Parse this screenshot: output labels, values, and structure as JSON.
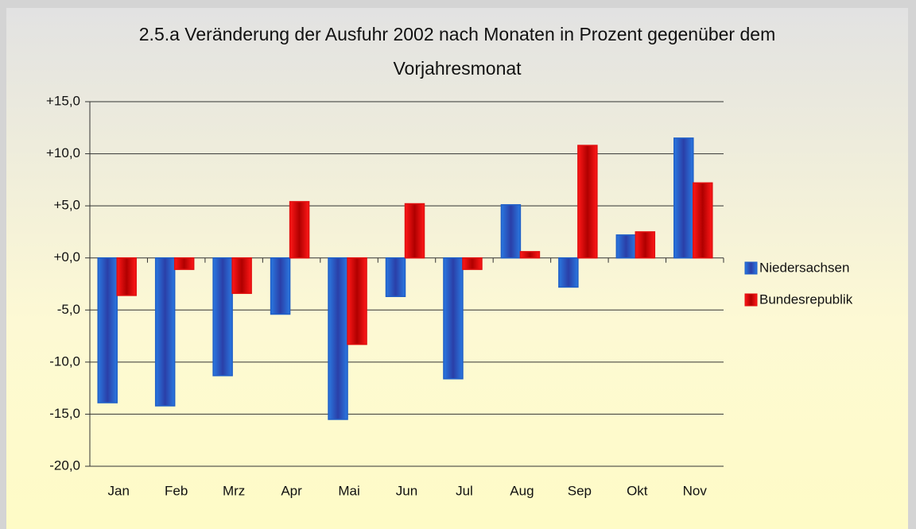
{
  "chart_data": {
    "type": "bar",
    "title": "2.5.a Veränderung der Ausfuhr 2002 nach Monaten in Prozent gegenüber dem Vorjahresmonat",
    "categories": [
      "Jan",
      "Feb",
      "Mrz",
      "Apr",
      "Mai",
      "Jun",
      "Jul",
      "Aug",
      "Sep",
      "Okt",
      "Nov"
    ],
    "series": [
      {
        "name": "Niedersachsen",
        "color": "#1f5fc8",
        "values": [
          -13.9,
          -14.2,
          -11.3,
          -5.4,
          -15.5,
          -3.7,
          -11.6,
          5.1,
          -2.8,
          2.2,
          11.5
        ]
      },
      {
        "name": "Bundesrepublik",
        "color": "#e01010",
        "values": [
          -3.6,
          -1.1,
          -3.4,
          5.4,
          -8.3,
          5.2,
          -1.1,
          0.6,
          10.8,
          2.5,
          7.2
        ]
      }
    ],
    "ylim": [
      -20,
      15
    ],
    "yticks": [
      {
        "value": -20,
        "label": "-20,0"
      },
      {
        "value": -15,
        "label": "-15,0"
      },
      {
        "value": -10,
        "label": "-10,0"
      },
      {
        "value": -5,
        "label": "-5,0"
      },
      {
        "value": 0,
        "label": "+0,0"
      },
      {
        "value": 5,
        "label": "+5,0"
      },
      {
        "value": 10,
        "label": "+10,0"
      },
      {
        "value": 15,
        "label": "+15,0"
      }
    ],
    "grid": true,
    "legend": "right"
  }
}
